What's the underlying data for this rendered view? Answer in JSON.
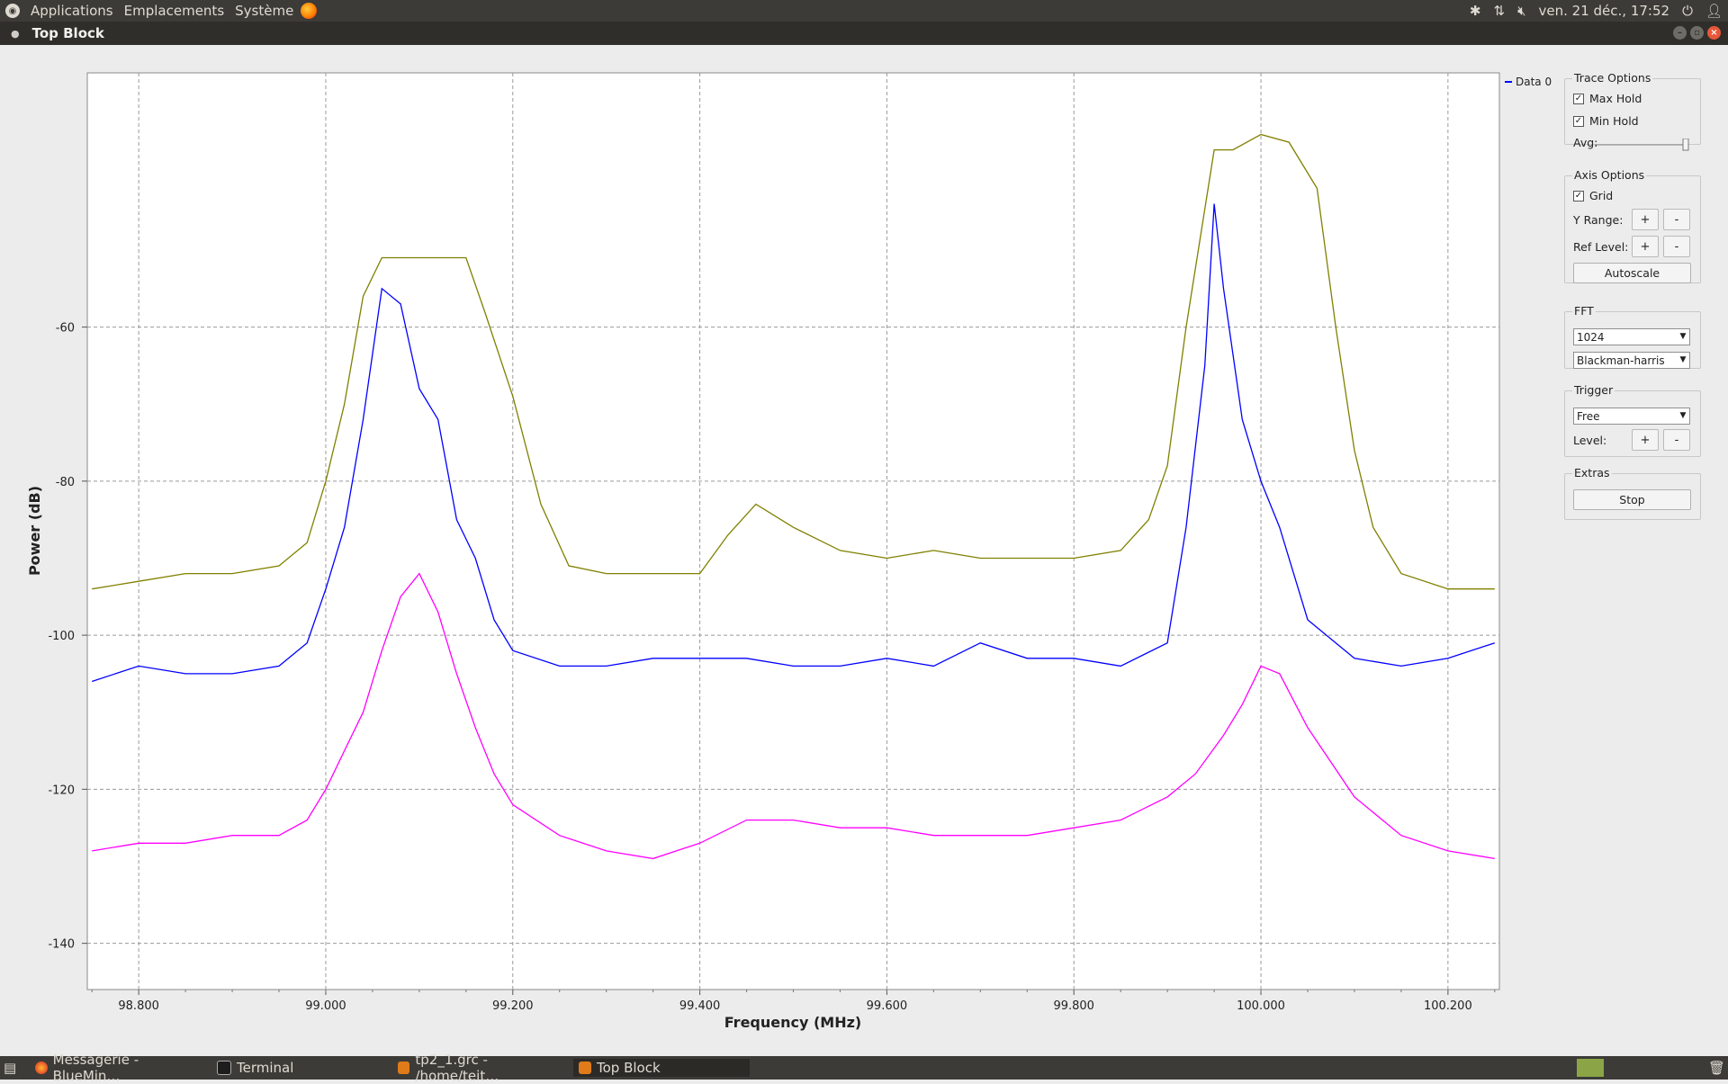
{
  "system_panel": {
    "menus": [
      "Applications",
      "Emplacements",
      "Système"
    ],
    "clock": "ven. 21 déc., 17:52"
  },
  "window": {
    "title": "Top Block"
  },
  "legend": {
    "label": "Data 0"
  },
  "chart_data": {
    "type": "line",
    "xlabel": "Frequency (MHz)",
    "ylabel": "Power (dB)",
    "xlim": [
      98.745,
      100.255
    ],
    "ylim": [
      -146,
      -27
    ],
    "x_ticks": [
      "98.800",
      "99.000",
      "99.200",
      "99.400",
      "99.600",
      "99.800",
      "100.000",
      "100.200"
    ],
    "y_ticks": [
      "-60",
      "-80",
      "-100",
      "-120",
      "-140"
    ],
    "grid": true,
    "series": [
      {
        "name": "Data 0",
        "color": "#0000ff",
        "x": [
          98.75,
          98.8,
          98.85,
          98.9,
          98.95,
          98.98,
          99.0,
          99.02,
          99.04,
          99.06,
          99.08,
          99.1,
          99.12,
          99.14,
          99.16,
          99.18,
          99.2,
          99.25,
          99.3,
          99.35,
          99.4,
          99.45,
          99.5,
          99.55,
          99.6,
          99.65,
          99.7,
          99.75,
          99.8,
          99.85,
          99.9,
          99.92,
          99.94,
          99.95,
          99.96,
          99.98,
          100.0,
          100.02,
          100.05,
          100.1,
          100.15,
          100.2,
          100.25
        ],
        "y": [
          -106,
          -104,
          -105,
          -105,
          -104,
          -101,
          -94,
          -86,
          -72,
          -55,
          -57,
          -68,
          -72,
          -85,
          -90,
          -98,
          -102,
          -104,
          -104,
          -103,
          -103,
          -103,
          -104,
          -104,
          -103,
          -104,
          -101,
          -103,
          -103,
          -104,
          -101,
          -86,
          -65,
          -44,
          -55,
          -72,
          -80,
          -86,
          -98,
          -103,
          -104,
          -103,
          -101
        ]
      },
      {
        "name": "Max Hold",
        "color": "#808000",
        "x": [
          98.75,
          98.8,
          98.85,
          98.9,
          98.95,
          98.98,
          99.0,
          99.02,
          99.04,
          99.06,
          99.1,
          99.15,
          99.17,
          99.2,
          99.23,
          99.26,
          99.3,
          99.35,
          99.4,
          99.43,
          99.46,
          99.5,
          99.55,
          99.6,
          99.65,
          99.7,
          99.75,
          99.8,
          99.85,
          99.88,
          99.9,
          99.92,
          99.95,
          99.97,
          100.0,
          100.03,
          100.06,
          100.08,
          100.1,
          100.12,
          100.15,
          100.2,
          100.25
        ],
        "y": [
          -94,
          -93,
          -92,
          -92,
          -91,
          -88,
          -80,
          -70,
          -56,
          -51,
          -51,
          -51,
          -58,
          -69,
          -83,
          -91,
          -92,
          -92,
          -92,
          -87,
          -83,
          -86,
          -89,
          -90,
          -89,
          -90,
          -90,
          -90,
          -89,
          -85,
          -78,
          -60,
          -37,
          -37,
          -35,
          -36,
          -42,
          -60,
          -76,
          -86,
          -92,
          -94,
          -94
        ]
      },
      {
        "name": "Min Hold",
        "color": "#ff00ff",
        "x": [
          98.75,
          98.8,
          98.85,
          98.9,
          98.95,
          98.98,
          99.0,
          99.02,
          99.04,
          99.06,
          99.08,
          99.1,
          99.12,
          99.14,
          99.16,
          99.18,
          99.2,
          99.25,
          99.3,
          99.35,
          99.4,
          99.45,
          99.5,
          99.55,
          99.6,
          99.65,
          99.7,
          99.75,
          99.8,
          99.85,
          99.9,
          99.93,
          99.96,
          99.98,
          100.0,
          100.02,
          100.05,
          100.1,
          100.15,
          100.2,
          100.25
        ],
        "y": [
          -128,
          -127,
          -127,
          -126,
          -126,
          -124,
          -120,
          -115,
          -110,
          -102,
          -95,
          -92,
          -97,
          -105,
          -112,
          -118,
          -122,
          -126,
          -128,
          -129,
          -127,
          -124,
          -124,
          -125,
          -125,
          -126,
          -126,
          -126,
          -125,
          -124,
          -121,
          -118,
          -113,
          -109,
          -104,
          -105,
          -112,
          -121,
          -126,
          -128,
          -129
        ]
      }
    ]
  },
  "trace_options": {
    "title": "Trace Options",
    "max_hold": "Max Hold",
    "min_hold": "Min Hold",
    "avg": "Avg:"
  },
  "axis_options": {
    "title": "Axis Options",
    "grid": "Grid",
    "y_range": "Y Range:",
    "ref_level": "Ref Level:",
    "plus": "+",
    "minus": "-",
    "autoscale": "Autoscale"
  },
  "fft": {
    "title": "FFT",
    "size": "1024",
    "window": "Blackman-harris"
  },
  "trigger": {
    "title": "Trigger",
    "mode": "Free",
    "level": "Level:",
    "plus": "+",
    "minus": "-"
  },
  "extras": {
    "title": "Extras",
    "stop": "Stop"
  },
  "taskbar": {
    "tasks": [
      "Messagerie - BlueMin…",
      "Terminal",
      "tp2_1.grc - /home/teit…",
      "Top Block"
    ]
  }
}
